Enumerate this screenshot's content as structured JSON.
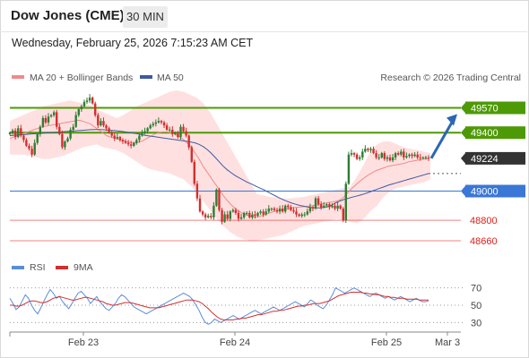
{
  "header": {
    "title": "Dow Jones (CME)",
    "interval": "30 MIN",
    "datetime": "Wednesday, February 25, 2026 7:15:23 AM CET"
  },
  "legend": {
    "ma20": "MA 20 + Bollinger Bands",
    "ma50": "MA 50",
    "copyright": "Research © 2026 Trading Central",
    "rsi": "RSI",
    "ma9": "9MA"
  },
  "colors": {
    "up": "#2e7d32",
    "down": "#d32f2f",
    "band": "#ffd6d6",
    "ma20": "#f08a8a",
    "ma50": "#3d5a9e",
    "resistance": "#4e9a06",
    "support": "#3a77d6",
    "level_red": "#e0201c",
    "last_price": "#333333",
    "arrow": "#2b67b4",
    "rsi": "#5b8dd6",
    "rsi_ma": "#d32f2f"
  },
  "chart_data": [
    {
      "type": "candlestick",
      "title": "Dow Jones (CME)",
      "interval": "30 MIN",
      "x_ticks": [
        "Feb 23",
        "Feb 24",
        "Feb 25",
        "Mar 3"
      ],
      "ylim": [
        48580,
        49720
      ],
      "last_price": 49224,
      "levels": [
        {
          "value": 49570,
          "label": "49570",
          "kind": "resistance"
        },
        {
          "value": 49400,
          "label": "49400",
          "kind": "resistance"
        },
        {
          "value": 49224,
          "label": "49224",
          "kind": "last"
        },
        {
          "value": 49000,
          "label": "49000",
          "kind": "support"
        },
        {
          "value": 48800,
          "label": "48800",
          "kind": "support2"
        },
        {
          "value": 48660,
          "label": "48660",
          "kind": "support2"
        }
      ],
      "close": [
        49400,
        49415,
        49370,
        49430,
        49380,
        49350,
        49310,
        49290,
        49250,
        49330,
        49390,
        49440,
        49500,
        49470,
        49510,
        49520,
        49540,
        49440,
        49390,
        49300,
        49340,
        49360,
        49420,
        49440,
        49520,
        49560,
        49580,
        49610,
        49620,
        49640,
        49600,
        49520,
        49450,
        49480,
        49450,
        49430,
        49400,
        49380,
        49360,
        49370,
        49350,
        49340,
        49330,
        49320,
        49310,
        49330,
        49350,
        49380,
        49400,
        49410,
        49430,
        49450,
        49460,
        49470,
        49480,
        49470,
        49450,
        49420,
        49420,
        49390,
        49400,
        49370,
        49440,
        49410,
        49380,
        49300,
        49200,
        49050,
        48950,
        48860,
        48840,
        48820,
        48830,
        48820,
        48900,
        49010,
        48870,
        48790,
        48840,
        48810,
        48860,
        48870,
        48850,
        48810,
        48820,
        48850,
        48850,
        48820,
        48840,
        48830,
        48850,
        48860,
        48840,
        48860,
        48880,
        48880,
        48870,
        48860,
        48880,
        48860,
        48900,
        48890,
        48870,
        48860,
        48840,
        48830,
        48840,
        48840,
        48860,
        48890,
        48880,
        48950,
        48910,
        48890,
        48900,
        48910,
        48890,
        48900,
        48880,
        48900,
        48880,
        48800,
        49050,
        49250,
        49260,
        49250,
        49220,
        49230,
        49270,
        49290,
        49280,
        49290,
        49260,
        49230,
        49230,
        49260,
        49220,
        49230,
        49210,
        49230,
        49260,
        49250,
        49270,
        49230,
        49240,
        49250,
        49240,
        49250,
        49230,
        49225,
        49230,
        49230,
        49224
      ],
      "ma20": [
        49360,
        49370,
        49380,
        49390,
        49400,
        49410,
        49420,
        49430,
        49440,
        49445,
        49450,
        49455,
        49460,
        49465,
        49470,
        49475,
        49480,
        49485,
        49480,
        49470,
        49460,
        49440,
        49420,
        49400,
        49380,
        49370,
        49362,
        49354,
        49346,
        49338,
        49332,
        49328,
        49334,
        49345,
        49360,
        49375,
        49390,
        49400,
        49405,
        49405,
        49400,
        49390,
        49375,
        49355,
        49330,
        49300,
        49260,
        49220,
        49170,
        49130,
        49090,
        49050,
        49010,
        48970,
        48935,
        48905,
        48880,
        48860,
        48845,
        48835,
        48825,
        48820,
        48825,
        48835,
        48845,
        48855,
        48862,
        48868,
        48875,
        48880,
        48885,
        48888,
        48890,
        48893,
        48896,
        48900,
        48905,
        48910,
        48915,
        48920,
        48925,
        48930,
        48940,
        48960,
        48990,
        49020,
        49045,
        49070,
        49090,
        49110,
        49125,
        49140,
        49150,
        49160,
        49170,
        49175,
        49180,
        49185,
        49190,
        49200,
        49205,
        49210,
        49215,
        49218,
        49220
      ],
      "ma50": [
        49380,
        49382,
        49384,
        49386,
        49388,
        49390,
        49392,
        49394,
        49396,
        49398,
        49400,
        49402,
        49404,
        49406,
        49408,
        49410,
        49412,
        49414,
        49416,
        49418,
        49420,
        49421,
        49421,
        49420,
        49418,
        49416,
        49414,
        49411,
        49408,
        49404,
        49400,
        49395,
        49390,
        49385,
        49380,
        49376,
        49372,
        49368,
        49364,
        49360,
        49356,
        49352,
        49348,
        49344,
        49340,
        49336,
        49330,
        49320,
        49305,
        49285,
        49260,
        49230,
        49200,
        49170,
        49145,
        49125,
        49105,
        49090,
        49075,
        49060,
        49048,
        49035,
        49022,
        49010,
        48995,
        48980,
        48966,
        48952,
        48940,
        48928,
        48918,
        48910,
        48902,
        48896,
        48890,
        48887,
        48885,
        48885,
        48888,
        48893,
        48905,
        48920,
        48932,
        48942,
        48950,
        48958,
        48965,
        48972,
        48980,
        48990,
        49000,
        49010,
        49020,
        49030,
        49040,
        49048,
        49056,
        49064,
        49072,
        49080,
        49088,
        49096,
        49104,
        49112,
        49120
      ],
      "band_upper": [
        49480,
        49500,
        49520,
        49540,
        49560,
        49580,
        49590,
        49600,
        49610,
        49620,
        49610,
        49600,
        49590,
        49560,
        49540,
        49520,
        49500,
        49520,
        49550,
        49580,
        49600,
        49620,
        49640,
        49660,
        49680,
        49690,
        49680,
        49660,
        49640,
        49600,
        49540,
        49460,
        49380,
        49300,
        49220,
        49140,
        49060,
        48980,
        48970,
        48960,
        48955,
        48950,
        48950,
        48955,
        48960,
        48970,
        48980,
        48990,
        49000,
        49010,
        49020,
        49030,
        49100,
        49180,
        49270,
        49320,
        49340,
        49340,
        49320,
        49300,
        49290,
        49280,
        49270,
        49260
      ],
      "band_lower": [
        49250,
        49250,
        49250,
        49240,
        49230,
        49220,
        49220,
        49230,
        49240,
        49260,
        49280,
        49300,
        49310,
        49320,
        49300,
        49290,
        49280,
        49260,
        49230,
        49200,
        49170,
        49150,
        49140,
        49130,
        49120,
        49100,
        49080,
        49040,
        48990,
        48930,
        48870,
        48810,
        48760,
        48720,
        48690,
        48670,
        48660,
        48660,
        48670,
        48680,
        48690,
        48700,
        48720,
        48740,
        48760,
        48770,
        48780,
        48790,
        48800,
        48810,
        48800,
        48790,
        48780,
        48810,
        48860,
        48900,
        48960,
        49000,
        49020,
        49030,
        49040,
        49050,
        49060,
        49080
      ]
    },
    {
      "type": "line",
      "title": "RSI",
      "series_names": [
        "RSI",
        "9MA"
      ],
      "yticks": [
        70,
        50,
        30
      ],
      "ylim": [
        20,
        80
      ],
      "x_ticks": [
        "Feb 23",
        "Feb 24",
        "Feb 25",
        "Mar 3"
      ],
      "rsi": [
        58,
        52,
        45,
        48,
        55,
        62,
        58,
        50,
        44,
        40,
        47,
        55,
        62,
        68,
        64,
        58,
        60,
        54,
        50,
        46,
        52,
        58,
        64,
        66,
        62,
        58,
        52,
        56,
        60,
        54,
        50,
        46,
        44,
        48,
        52,
        58,
        62,
        60,
        56,
        52,
        48,
        46,
        44,
        42,
        40,
        42,
        44,
        46,
        48,
        50,
        52,
        54,
        56,
        58,
        60,
        62,
        64,
        62,
        60,
        56,
        50,
        44,
        36,
        30,
        28,
        30,
        34,
        32,
        30,
        32,
        34,
        36,
        38,
        36,
        34,
        36,
        38,
        40,
        42,
        44,
        42,
        40,
        42,
        44,
        46,
        48,
        46,
        44,
        46,
        48,
        50,
        52,
        54,
        52,
        50,
        48,
        52,
        56,
        54,
        50,
        48,
        46,
        50,
        56,
        62,
        70,
        68,
        66,
        64,
        66,
        68,
        70,
        68,
        66,
        64,
        62,
        60,
        62,
        64,
        62,
        60,
        58,
        60,
        58,
        56,
        58,
        60,
        58,
        56,
        54,
        56,
        58,
        56,
        54,
        54,
        55
      ],
      "rsi_ma": [
        50,
        50,
        49,
        49,
        50,
        52,
        54,
        55,
        55,
        54,
        53,
        53,
        54,
        56,
        58,
        59,
        60,
        59,
        58,
        57,
        56,
        56,
        57,
        58,
        59,
        59,
        58,
        57,
        56,
        55,
        54,
        52,
        51,
        50,
        50,
        51,
        52,
        53,
        53,
        53,
        52,
        51,
        50,
        49,
        48,
        47,
        47,
        47,
        47,
        48,
        49,
        50,
        51,
        52,
        53,
        54,
        55,
        56,
        56,
        56,
        55,
        54,
        52,
        49,
        46,
        42,
        39,
        36,
        34,
        33,
        33,
        33,
        33,
        34,
        34,
        35,
        35,
        36,
        37,
        38,
        39,
        39,
        40,
        41,
        42,
        43,
        43,
        44,
        44,
        45,
        46,
        47,
        48,
        49,
        49,
        50,
        50,
        51,
        52,
        52,
        52,
        53,
        54,
        55,
        57,
        59,
        61,
        62,
        63,
        64,
        65,
        65,
        65,
        65,
        64,
        64,
        63,
        63,
        62,
        62,
        61,
        60,
        60,
        59,
        59,
        58,
        58,
        58,
        57,
        57,
        57,
        57,
        56,
        56,
        56,
        56
      ]
    }
  ]
}
